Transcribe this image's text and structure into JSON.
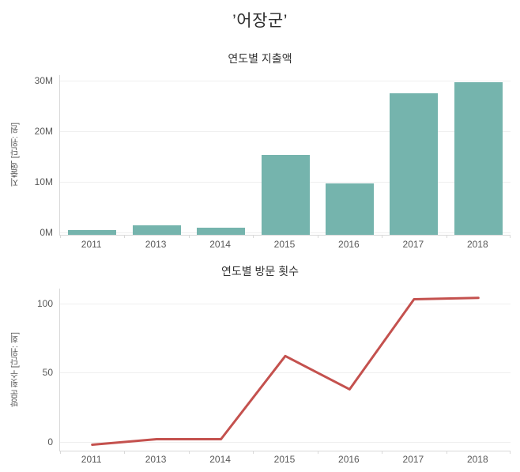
{
  "page": {
    "title": "’어장군’"
  },
  "colors": {
    "bar_teal": "#75b4ad",
    "line_red": "#c4514e",
    "gridline": "#efefef",
    "axis_line": "#d9d9d9",
    "tick_text": "#585858",
    "title_text": "#333333"
  },
  "chart_data": [
    {
      "type": "bar",
      "title": "연도별 지출액",
      "ylabel": "지출액 [단위: 원]",
      "categories": [
        "2011",
        "2013",
        "2014",
        "2015",
        "2016",
        "2017",
        "2018"
      ],
      "values_millions": [
        0.5,
        1.4,
        0.9,
        15.3,
        9.7,
        27.5,
        29.7
      ],
      "unit": "M (million won)",
      "yticks": [
        {
          "value": 0,
          "label": "0M"
        },
        {
          "value": 10,
          "label": "10M"
        },
        {
          "value": 20,
          "label": "20M"
        },
        {
          "value": 30,
          "label": "30M"
        }
      ],
      "ylim": [
        -0.5,
        31.1
      ],
      "grid": true,
      "legend": "none",
      "bar_color": "#75b4ad"
    },
    {
      "type": "line",
      "title": "연도별 방문 횟수",
      "ylabel": "방문 횟수 [단위: 회]",
      "categories": [
        "2011",
        "2013",
        "2014",
        "2015",
        "2016",
        "2017",
        "2018"
      ],
      "values": [
        -2,
        2,
        2,
        62,
        38,
        103,
        104
      ],
      "yticks": [
        {
          "value": 0,
          "label": "0"
        },
        {
          "value": 50,
          "label": "50"
        },
        {
          "value": 100,
          "label": "100"
        }
      ],
      "ylim": [
        -6.3,
        110.7
      ],
      "grid": true,
      "legend": "none",
      "line_color": "#c4514e"
    }
  ]
}
